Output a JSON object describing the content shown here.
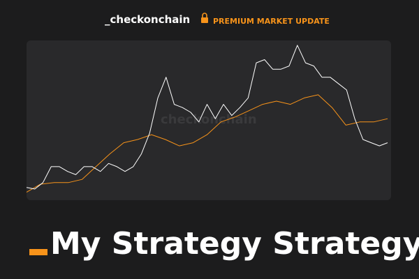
{
  "header": {
    "brand": "_checkonchain",
    "badge": "PREMIUM MARKET UPDATE"
  },
  "watermark": "checkonchain",
  "title": "My Strategy Strategy",
  "chart_data": {
    "type": "line",
    "ylim": [
      0,
      100
    ],
    "series": [
      {
        "color": "#ffffff",
        "values": [
          8,
          7,
          11,
          21,
          21,
          18,
          16,
          21,
          21,
          18,
          23,
          21,
          18,
          21,
          29,
          42,
          64,
          77,
          60,
          58,
          55,
          49,
          60,
          51,
          60,
          53,
          58,
          64,
          86,
          88,
          82,
          82,
          84,
          97,
          86,
          84,
          77,
          77,
          73,
          69,
          51,
          38,
          36,
          34,
          36
        ]
      },
      {
        "color": "#f7931a",
        "values": [
          5,
          10,
          11,
          11,
          13,
          21,
          29,
          36,
          38,
          41,
          38,
          34,
          36,
          41,
          49,
          52,
          56,
          60,
          62,
          60,
          64,
          66,
          58,
          47,
          49,
          49,
          51
        ]
      }
    ]
  }
}
